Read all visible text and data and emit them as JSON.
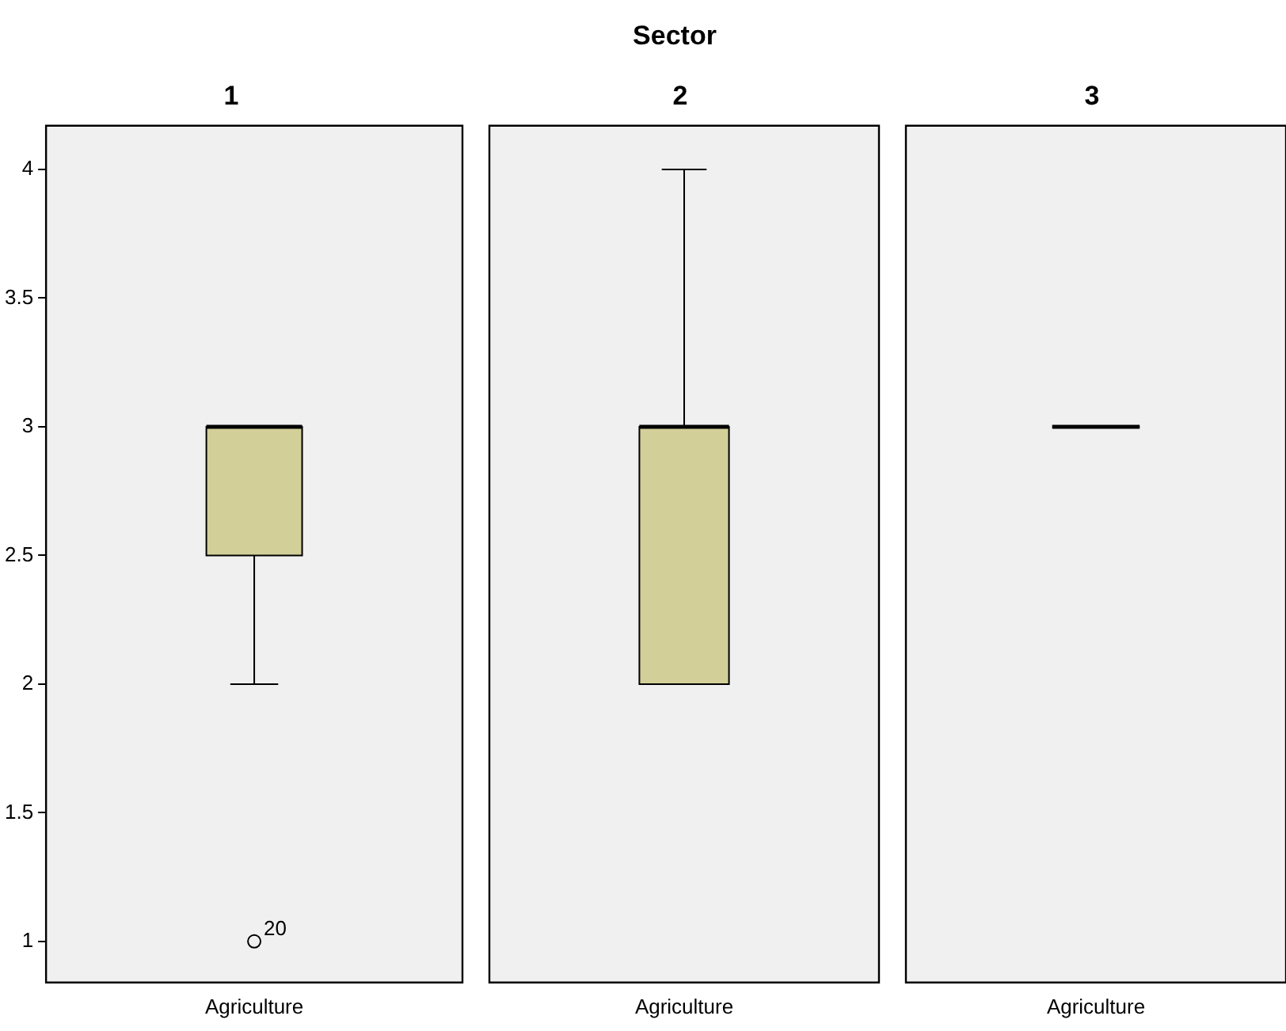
{
  "chart_data": [
    {
      "type": "box",
      "title": "1",
      "categories": [
        "Agriculture"
      ],
      "color": "#d3cf99",
      "marker": "circle",
      "ylim": [
        0.84,
        4.17
      ],
      "yticks": [
        1,
        1.5,
        2,
        2.5,
        3,
        3.5,
        4
      ],
      "boxes": [
        {
          "low": 2,
          "q1": 2.5,
          "median": 3,
          "q3": 3,
          "high": 3,
          "outliers": [
            1
          ]
        }
      ],
      "annotations": [
        "Sector",
        "20"
      ]
    },
    {
      "type": "box",
      "title": "2",
      "categories": [
        "Agriculture"
      ],
      "color": "#d3cf99",
      "ylim": [
        0.84,
        4.17
      ],
      "tick_labels": "x",
      "boxes": [
        {
          "low": 2,
          "q1": 2,
          "median": 3,
          "q3": 3,
          "high": 4
        }
      ]
    },
    {
      "type": "box",
      "title": "3",
      "categories": [
        "Agriculture"
      ],
      "ylim": [
        0.84,
        4.17
      ],
      "tick_labels": "x",
      "boxes": [
        {
          "low": 3,
          "q1": 3,
          "median": 3,
          "q3": 3,
          "high": 3
        }
      ]
    }
  ]
}
